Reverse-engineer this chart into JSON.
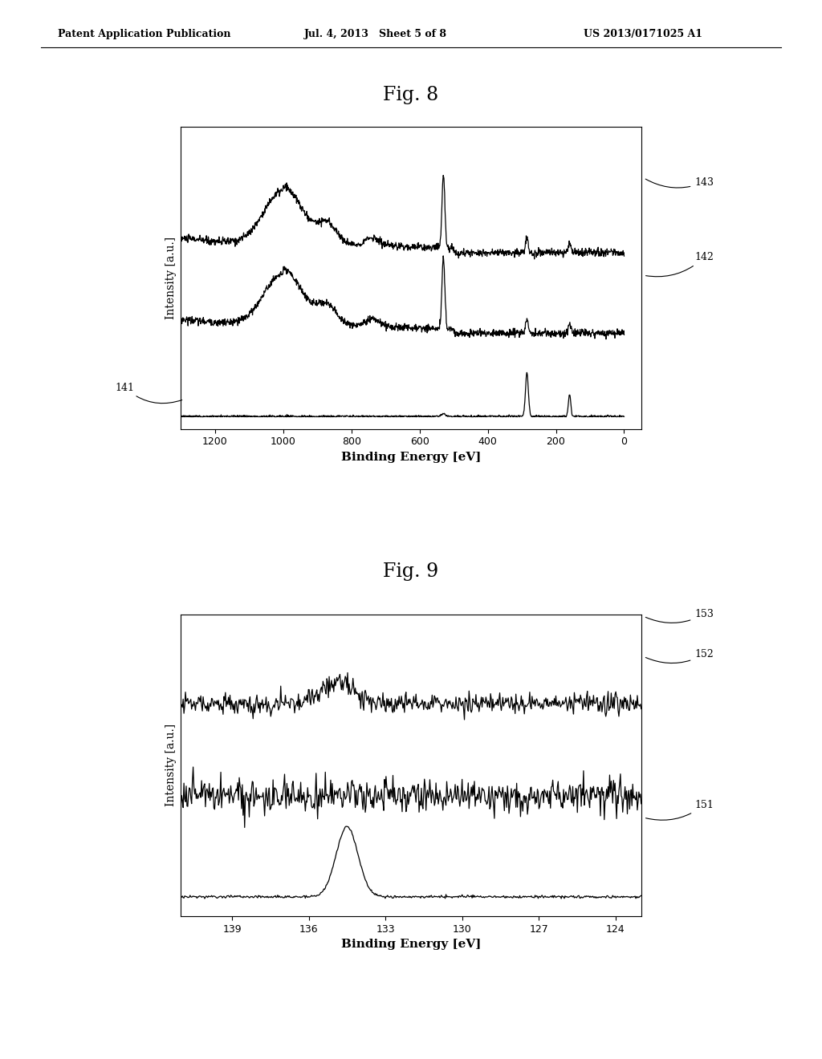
{
  "fig_title1": "Fig. 8",
  "fig_title2": "Fig. 9",
  "header_left": "Patent Application Publication",
  "header_mid": "Jul. 4, 2013   Sheet 5 of 8",
  "header_right": "US 2013/0171025 A1",
  "fig8": {
    "xlabel": "Binding Energy [eV]",
    "ylabel": "Intensity [a.u.]",
    "xticks": [
      1200,
      1000,
      800,
      600,
      400,
      200,
      0
    ],
    "labels": [
      "143",
      "142",
      "141"
    ],
    "offsets": [
      2.0,
      1.0,
      0.0
    ]
  },
  "fig9": {
    "xlabel": "Binding Energy [eV]",
    "ylabel": "Intensity [a.u.]",
    "xticks": [
      139,
      136,
      133,
      130,
      127,
      124
    ],
    "labels": [
      "153",
      "152",
      "151"
    ],
    "offsets": [
      2.0,
      1.0,
      0.0
    ]
  },
  "background_color": "#ffffff",
  "line_color": "#000000",
  "text_color": "#000000"
}
